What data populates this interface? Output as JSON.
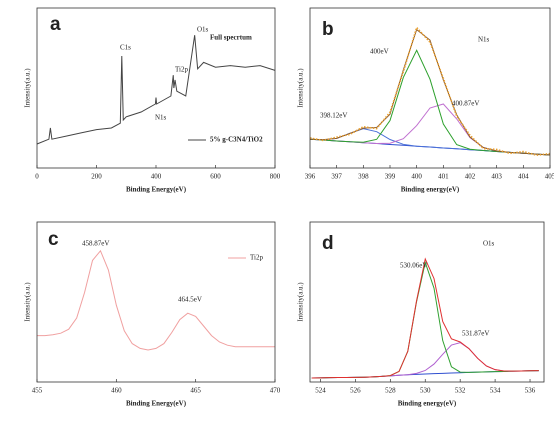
{
  "chart_data": [
    {
      "type": "line",
      "panel_label": "a",
      "x_label": "Binding Energy(eV)",
      "y_label": "Intensity(a.u.)",
      "xlim": [
        0,
        800
      ],
      "xticks": [
        0,
        200,
        400,
        600,
        800
      ],
      "ylim": [
        0,
        100
      ],
      "x": [
        0,
        40,
        45,
        50,
        100,
        150,
        200,
        250,
        280,
        285,
        290,
        300,
        350,
        398,
        400,
        402,
        450,
        458,
        460,
        464,
        470,
        500,
        530,
        540,
        560,
        600,
        650,
        700,
        750,
        800
      ],
      "series": [
        {
          "name": "5% g-C3N4/TiO2",
          "color": "#444444",
          "values": [
            15,
            18,
            25,
            18,
            20,
            22,
            24,
            25,
            28,
            70,
            30,
            32,
            35,
            40,
            44,
            40,
            45,
            58,
            50,
            55,
            48,
            45,
            83,
            62,
            66,
            63,
            64,
            63,
            64,
            61
          ]
        }
      ],
      "annotations": [
        "C1s",
        "N1s",
        "Ti2p",
        "O1s",
        "Full specrtum"
      ]
    },
    {
      "type": "line",
      "panel_label": "b",
      "x_label": "Binding energy(eV)",
      "y_label": "Intensity(a.u.)",
      "xlim": [
        396,
        405
      ],
      "xticks": [
        396,
        397,
        398,
        399,
        400,
        401,
        402,
        403,
        404,
        405
      ],
      "ylim": [
        0,
        100
      ],
      "x": [
        396,
        396.5,
        397,
        397.5,
        398,
        398.5,
        399,
        399.5,
        400,
        400.5,
        401,
        401.5,
        402,
        402.5,
        403,
        403.5,
        404,
        404.5,
        405
      ],
      "series": [
        {
          "color": "#3050d0",
          "values": [
            18,
            17.5,
            16.9,
            16.4,
            15.8,
            15.3,
            14.7,
            14.2,
            13.6,
            13.1,
            12.5,
            12,
            11.4,
            10.9,
            10.3,
            9.8,
            9.2,
            8.7,
            8.1
          ]
        },
        {
          "color": "#4a70d8",
          "values": [
            18,
            17.6,
            18.5,
            21.7,
            24.6,
            22.7,
            17.8,
            14.8,
            13.6,
            13.1,
            12.5,
            12,
            11.4,
            10.9,
            10.3,
            9.8,
            9.2,
            8.7,
            8.1
          ]
        },
        {
          "color": "#c070d0",
          "values": [
            18,
            17.5,
            16.9,
            16.4,
            15.8,
            15.3,
            15.5,
            18.3,
            26.5,
            37.5,
            40,
            30.7,
            19,
            12.8,
            10.6,
            9.8,
            9.2,
            8.7,
            8.1
          ]
        },
        {
          "color": "#2ca02c",
          "values": [
            18,
            17.5,
            16.9,
            16.4,
            16.1,
            17.9,
            29.7,
            56.6,
            73.6,
            55.5,
            27.5,
            14.6,
            11.7,
            10.9,
            10.3,
            9.8,
            9.2,
            8.7,
            8.1
          ]
        },
        {
          "color": "#8b5a2b",
          "values": [
            18,
            17.7,
            18.5,
            21.7,
            24.9,
            25.3,
            33.6,
            61.3,
            86.5,
            79.9,
            55,
            33.3,
            19.3,
            12.8,
            10.6,
            9.8,
            9.2,
            8.7,
            8.1
          ]
        },
        {
          "color": "#e8a030",
          "style": "dotted",
          "values": [
            18.8,
            17.2,
            19.3,
            21,
            25.8,
            24.6,
            34.9,
            60.2,
            87.8,
            78.6,
            56.1,
            32.4,
            20.5,
            12.1,
            11.6,
            9.1,
            10.3,
            8,
            9
          ]
        }
      ],
      "annotations": [
        "400eV",
        "398.12eV",
        "400.87eV",
        "N1s"
      ]
    },
    {
      "type": "line",
      "panel_label": "c",
      "x_label": "Binding Energy(eV)",
      "y_label": "Intensity(a.u.)",
      "xlim": [
        455,
        470
      ],
      "xticks": [
        455,
        460,
        465,
        470
      ],
      "ylim": [
        0,
        100
      ],
      "x": [
        455,
        455.5,
        456,
        456.5,
        457,
        457.5,
        458,
        458.5,
        459,
        459.5,
        460,
        460.5,
        461,
        461.5,
        462,
        462.5,
        463,
        463.5,
        464,
        464.5,
        465,
        465.5,
        466,
        466.5,
        467,
        467.5,
        468,
        468.5,
        469,
        469.5,
        470
      ],
      "series": [
        {
          "name": "Ti2p",
          "color": "#f0a0a0",
          "values": [
            29,
            29,
            29.5,
            30.5,
            33,
            40,
            56,
            76,
            82,
            70,
            48,
            32,
            24,
            21,
            20,
            21,
            24,
            31,
            39,
            43,
            41,
            35,
            29,
            25,
            23,
            22,
            22,
            22,
            22,
            22,
            22
          ]
        }
      ],
      "annotations": [
        "458.87eV",
        "464.5eV"
      ]
    },
    {
      "type": "line",
      "panel_label": "d",
      "x_label": "Binding energy(eV)",
      "y_label": "Intensity(a.u.)",
      "xlim": [
        523.4,
        536.8
      ],
      "xticks": [
        524,
        526,
        528,
        530,
        532,
        534,
        536
      ],
      "ylim": [
        0,
        100
      ],
      "x": [
        523.5,
        524,
        524.5,
        525,
        525.5,
        526,
        526.5,
        527,
        527.5,
        528,
        528.5,
        529,
        529.5,
        530,
        530.5,
        531,
        531.5,
        532,
        532.5,
        533,
        533.5,
        534,
        534.5,
        535,
        535.5,
        536,
        536.5
      ],
      "series": [
        {
          "color": "#3050d0",
          "values": [
            2.5,
            2.6,
            2.7,
            2.8,
            2.8,
            2.9,
            3,
            3.2,
            3.5,
            3.8,
            4.2,
            4.5,
            4.8,
            5,
            5.2,
            5.4,
            5.6,
            5.8,
            6,
            6.2,
            6.3,
            6.5,
            6.6,
            6.8,
            6.9,
            7,
            7.1
          ]
        },
        {
          "color": "#b060d0",
          "values": [
            2.5,
            2.6,
            2.7,
            2.8,
            2.8,
            2.9,
            3,
            3.2,
            3.5,
            3.8,
            4.2,
            4.5,
            5.4,
            7.2,
            11.2,
            17.3,
            23.1,
            24.6,
            20.9,
            14.8,
            10,
            7.7,
            6.9,
            6.8,
            6.9,
            7,
            7.1
          ]
        },
        {
          "color": "#30a030",
          "values": [
            2.5,
            2.6,
            2.7,
            2.8,
            2.8,
            2.9,
            3,
            3.2,
            3.5,
            4,
            6.6,
            19.2,
            50.1,
            74.7,
            58.7,
            25.9,
            9.5,
            6.2,
            6,
            6.2,
            6.3,
            6.5,
            6.6,
            6.8,
            6.9,
            7,
            7.1
          ]
        },
        {
          "color": "#e03030",
          "values": [
            2.5,
            2.6,
            2.7,
            2.8,
            2.8,
            2.9,
            3,
            3.2,
            3.5,
            4,
            6.6,
            19.2,
            50.7,
            76.9,
            64.7,
            37.8,
            27,
            25,
            20.9,
            14.8,
            10,
            7.7,
            6.9,
            6.8,
            6.9,
            7,
            7.1
          ]
        }
      ],
      "annotations": [
        "530.06eV",
        "531.87eV",
        "O1s"
      ]
    }
  ]
}
